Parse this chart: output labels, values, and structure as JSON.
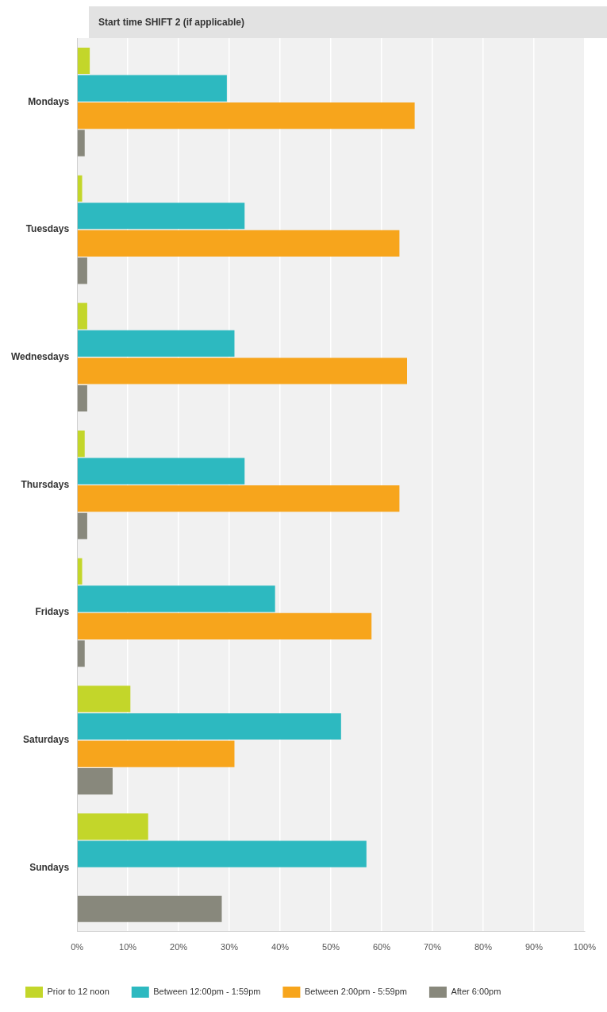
{
  "chart_data": {
    "type": "bar",
    "orientation": "horizontal",
    "title": "Start time SHIFT 2 (if applicable)",
    "categories": [
      "Mondays",
      "Tuesdays",
      "Wednesdays",
      "Thursdays",
      "Fridays",
      "Saturdays",
      "Sundays"
    ],
    "series": [
      {
        "name": "Prior to 12 noon",
        "color": "#c3d62a",
        "values": [
          2.5,
          1,
          2,
          1.5,
          1,
          10.5,
          14
        ]
      },
      {
        "name": "Between 12:00pm - 1:59pm",
        "color": "#2db9c0",
        "values": [
          29.5,
          33,
          31,
          33,
          39,
          52,
          57
        ]
      },
      {
        "name": "Between 2:00pm - 5:59pm",
        "color": "#f7a51c",
        "values": [
          66.5,
          63.5,
          65,
          63.5,
          58,
          31,
          null
        ]
      },
      {
        "name": "After 6:00pm",
        "color": "#88887c",
        "values": [
          1.5,
          2,
          2,
          2,
          1.5,
          7,
          28.5
        ]
      }
    ],
    "xlim": [
      0,
      100
    ],
    "xticks": [
      {
        "value": 0,
        "label": "0%"
      },
      {
        "value": 10,
        "label": "10%"
      },
      {
        "value": 20,
        "label": "20%"
      },
      {
        "value": 30,
        "label": "30%"
      },
      {
        "value": 40,
        "label": "40%"
      },
      {
        "value": 50,
        "label": "50%"
      },
      {
        "value": 60,
        "label": "60%"
      },
      {
        "value": 70,
        "label": "70%"
      },
      {
        "value": 80,
        "label": "80%"
      },
      {
        "value": 90,
        "label": "90%"
      },
      {
        "value": 100,
        "label": "100%"
      }
    ],
    "grid": "x",
    "legend": "bottom"
  }
}
